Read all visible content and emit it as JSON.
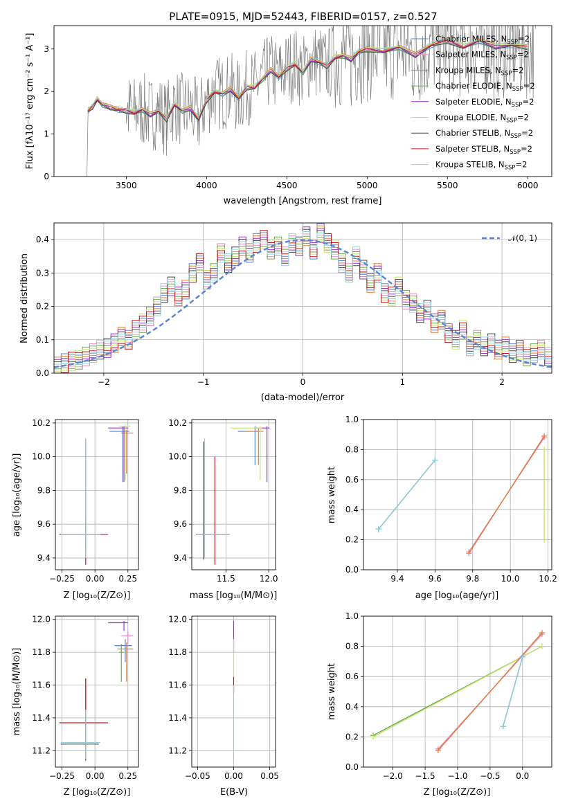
{
  "colors": {
    "chabrier_miles": "#5b84d6",
    "salpeter_miles": "#e58bc4",
    "kroupa_miles": "#e07b39",
    "chabrier_elodie": "#6aa84f",
    "salpeter_elodie": "#9b2fd0",
    "kroupa_elodie": "#c9e36a",
    "chabrier_stelib": "#444444",
    "salpeter_stelib": "#c0191f",
    "kroupa_stelib": "#8fd3e0",
    "data": "#7f7f7f",
    "normal": "#5b84d6"
  },
  "chart_data": [
    {
      "id": "spectrum",
      "type": "line",
      "title": "PLATE=0915, MJD=52443, FIBERID=0157, z=0.527",
      "xlabel": "wavelength [Angstrom, rest frame]",
      "ylabel": "Flux [fλ10⁻¹⁷ erg cm⁻² s⁻¹ A⁻¹]",
      "xlim": [
        3050,
        6150
      ],
      "ylim": [
        0,
        3.55
      ],
      "xticks": [
        3500,
        4000,
        4500,
        5000,
        5500,
        6000
      ],
      "yticks": [
        0,
        1,
        2,
        3
      ],
      "grid": false,
      "legend_position": "top-right",
      "series": [
        {
          "name": "Chabrier MILES, N",
          "sub": "SSP",
          "suffix": "=2"
        },
        {
          "name": "Salpeter MILES, N",
          "sub": "SSP",
          "suffix": "=2"
        },
        {
          "name": "Kroupa MILES, N",
          "sub": "SSP",
          "suffix": "=2"
        },
        {
          "name": "Chabrier ELODIE, N",
          "sub": "SSP",
          "suffix": "=2"
        },
        {
          "name": "Salpeter ELODIE, N",
          "sub": "SSP",
          "suffix": "=2"
        },
        {
          "name": "Kroupa ELODIE, N",
          "sub": "SSP",
          "suffix": "=2"
        },
        {
          "name": "Chabrier STELIB, N",
          "sub": "SSP",
          "suffix": "=2"
        },
        {
          "name": "Salpeter STELIB, N",
          "sub": "SSP",
          "suffix": "=2"
        },
        {
          "name": "Kroupa STELIB, N",
          "sub": "SSP",
          "suffix": "=2"
        }
      ],
      "model_trend": {
        "x": [
          3260,
          3290,
          3320,
          3350,
          3400,
          3450,
          3500,
          3550,
          3600,
          3650,
          3700,
          3750,
          3800,
          3850,
          3900,
          3950,
          4000,
          4050,
          4100,
          4150,
          4200,
          4250,
          4300,
          4350,
          4400,
          4450,
          4500,
          4550,
          4600,
          4650,
          4700,
          4750,
          4800,
          4850,
          4900,
          4950,
          5000,
          5100,
          5200,
          5300,
          5400,
          5500,
          5600,
          5700,
          5800,
          5900,
          6000
        ],
        "y": [
          1.55,
          1.65,
          1.82,
          1.7,
          1.62,
          1.58,
          1.55,
          1.5,
          1.58,
          1.45,
          1.55,
          1.35,
          1.7,
          1.55,
          1.6,
          1.35,
          1.8,
          2.0,
          1.95,
          2.05,
          1.85,
          2.1,
          2.1,
          2.3,
          2.5,
          2.35,
          2.55,
          2.65,
          2.45,
          2.75,
          2.7,
          2.6,
          2.8,
          2.85,
          2.75,
          2.95,
          3.0,
          2.95,
          3.05,
          2.85,
          3.1,
          3.2,
          3.05,
          3.2,
          3.05,
          3.1,
          3.05
        ]
      }
    },
    {
      "id": "residuals",
      "type": "line",
      "xlabel": "(data-model)/error",
      "ylabel": "Normed distribution",
      "xlim": [
        -2.5,
        2.5
      ],
      "ylim": [
        0,
        0.45
      ],
      "xticks": [
        -2,
        -1,
        0,
        1,
        2
      ],
      "yticks": [
        0.0,
        0.1,
        0.2,
        0.3,
        0.4
      ],
      "grid": true,
      "legend_position": "top-right",
      "normal_label": "𝒩(0, 1)",
      "normal": {
        "mu": 0,
        "sigma": 1
      },
      "hist_reference": [
        0.02,
        0.03,
        0.035,
        0.04,
        0.05,
        0.06,
        0.07,
        0.075,
        0.09,
        0.11,
        0.1,
        0.13,
        0.15,
        0.17,
        0.2,
        0.24,
        0.26,
        0.23,
        0.25,
        0.3,
        0.33,
        0.28,
        0.3,
        0.36,
        0.33,
        0.35,
        0.38,
        0.36,
        0.39,
        0.4,
        0.37,
        0.38,
        0.35,
        0.39,
        0.38,
        0.41,
        0.37,
        0.42,
        0.39,
        0.37,
        0.33,
        0.3,
        0.35,
        0.31,
        0.27,
        0.3,
        0.24,
        0.23,
        0.26,
        0.22,
        0.21,
        0.18,
        0.19,
        0.15,
        0.16,
        0.12,
        0.1,
        0.13,
        0.08,
        0.1,
        0.08,
        0.09,
        0.07,
        0.08,
        0.06,
        0.07,
        0.05,
        0.06,
        0.07,
        0.05
      ]
    },
    {
      "id": "age_vs_Z",
      "type": "scatter",
      "xlabel": "Z [log₁₀(Z/Z⊙)]",
      "ylabel": "age  [log₁₀(age/yr)]",
      "xlim": [
        -0.3,
        0.33
      ],
      "ylim": [
        9.33,
        10.22
      ],
      "xticks": [
        -0.25,
        0.0,
        0.25
      ],
      "xticklabels": [
        "−0.25",
        "0.00",
        "0.25"
      ],
      "yticks": [
        9.4,
        9.6,
        9.8,
        10.0,
        10.2
      ],
      "grid": true,
      "points": [
        {
          "series": "chabrier_miles",
          "x": 0.21,
          "y": 10.15,
          "xerr": [
            0.1,
            0.05
          ],
          "yerr": [
            0.3,
            0.03
          ]
        },
        {
          "series": "kroupa_miles",
          "x": 0.24,
          "y": 10.14,
          "xerr": [
            0.04,
            0.05
          ],
          "yerr": [
            0.24,
            0.02
          ]
        },
        {
          "series": "salpeter_elodie",
          "x": 0.22,
          "y": 10.17,
          "xerr": [
            0.12,
            0.03
          ],
          "yerr": [
            0.32,
            0.01
          ]
        },
        {
          "series": "kroupa_elodie",
          "x": 0.23,
          "y": 10.18,
          "xerr": [
            0.05,
            0.04
          ],
          "yerr": [
            0.32,
            0.01
          ]
        },
        {
          "series": "chabrier_stelib",
          "x": -0.07,
          "y": 9.54,
          "xerr": [
            0.19,
            0.1
          ],
          "yerr": [
            0.1,
            0.56
          ]
        },
        {
          "series": "salpeter_stelib",
          "x": -0.07,
          "y": 9.54,
          "xerr": [
            0.2,
            0.17
          ],
          "yerr": [
            0.18,
            0.1
          ]
        },
        {
          "series": "kroupa_stelib",
          "x": -0.07,
          "y": 9.54,
          "xerr": [
            0.19,
            0.11
          ],
          "yerr": [
            0.14,
            0.57
          ]
        }
      ]
    },
    {
      "id": "age_vs_mass",
      "type": "scatter",
      "xlabel": "mass [log₁₀(M/M⊙)]",
      "ylabel": "",
      "xlim": [
        11.1,
        12.08
      ],
      "ylim": [
        9.33,
        10.22
      ],
      "xticks": [
        11.5,
        12.0
      ],
      "xticklabels": [
        "11.5",
        "12.0"
      ],
      "yticks": [
        9.4,
        9.6,
        9.8,
        10.0,
        10.2
      ],
      "grid": true,
      "points": [
        {
          "series": "chabrier_miles",
          "x": 11.84,
          "y": 10.15,
          "xerr": [
            0.2,
            0.05
          ],
          "yerr": [
            0.2,
            0.03
          ]
        },
        {
          "series": "kroupa_miles",
          "x": 11.88,
          "y": 10.15,
          "xerr": [
            0.15,
            0.06
          ],
          "yerr": [
            0.2,
            0.02
          ]
        },
        {
          "series": "salpeter_elodie",
          "x": 11.98,
          "y": 10.17,
          "xerr": [
            0.15,
            0.03
          ],
          "yerr": [
            0.32,
            0.01
          ]
        },
        {
          "series": "kroupa_elodie",
          "x": 11.9,
          "y": 10.17,
          "xerr": [
            0.35,
            0.02
          ],
          "yerr": [
            0.31,
            0.01
          ]
        },
        {
          "series": "chabrier_stelib",
          "x": 11.24,
          "y": 9.54,
          "xerr": [
            0.09,
            0.3
          ],
          "yerr": [
            0.15,
            0.55
          ]
        },
        {
          "series": "salpeter_stelib",
          "x": 11.37,
          "y": 9.54,
          "xerr": [
            0.2,
            0.17
          ],
          "yerr": [
            0.18,
            0.46
          ]
        },
        {
          "series": "kroupa_stelib",
          "x": 11.25,
          "y": 9.54,
          "xerr": [
            0.09,
            0.3
          ],
          "yerr": [
            0.14,
            0.57
          ]
        }
      ]
    },
    {
      "id": "weight_vs_age",
      "type": "line",
      "xlabel": "age  [log₁₀(age/yr)]",
      "ylabel": "mass weight",
      "xlim": [
        9.22,
        10.22
      ],
      "ylim": [
        0,
        1.0
      ],
      "xticks": [
        9.4,
        9.6,
        9.8,
        10.0,
        10.2
      ],
      "yticks": [
        0.0,
        0.2,
        0.4,
        0.6,
        0.8,
        1.0
      ],
      "grid": true,
      "series": [
        {
          "series": "chabrier_stelib",
          "x": [
            9.3,
            9.6
          ],
          "y": [
            0.27,
            0.73
          ]
        },
        {
          "series": "kroupa_stelib",
          "x": [
            9.3,
            9.6
          ],
          "y": [
            0.27,
            0.73
          ]
        },
        {
          "series": "salpeter_miles",
          "x": [
            9.78,
            10.18
          ],
          "y": [
            0.12,
            0.88
          ]
        },
        {
          "series": "kroupa_miles",
          "x": [
            9.78,
            10.18
          ],
          "y": [
            0.11,
            0.89
          ]
        },
        {
          "series": "kroupa_elodie",
          "x": [
            10.18,
            10.18
          ],
          "y": [
            0.2,
            0.8
          ]
        }
      ]
    },
    {
      "id": "mass_vs_Z",
      "type": "scatter",
      "xlabel": "Z [log₁₀(Z/Z⊙)]",
      "ylabel": "mass [log₁₀(M/M⊙)]",
      "xlim": [
        -0.3,
        0.33
      ],
      "ylim": [
        11.1,
        12.02
      ],
      "xticks": [
        -0.25,
        0.0,
        0.25
      ],
      "xticklabels": [
        "−0.25",
        "0.00",
        "0.25"
      ],
      "yticks": [
        11.2,
        11.4,
        11.6,
        11.8,
        12.0
      ],
      "grid": true,
      "points": [
        {
          "series": "chabrier_miles",
          "x": 0.23,
          "y": 11.84,
          "xerr": [
            0.08,
            0.05
          ],
          "yerr": [
            0.1,
            0.04
          ]
        },
        {
          "series": "kroupa_miles",
          "x": 0.24,
          "y": 11.82,
          "xerr": [
            0.07,
            0.05
          ],
          "yerr": [
            0.2,
            0.04
          ]
        },
        {
          "series": "salpeter_miles",
          "x": 0.25,
          "y": 11.9,
          "xerr": [
            0.05,
            0.04
          ],
          "yerr": [
            0.05,
            0.03
          ]
        },
        {
          "series": "chabrier_elodie",
          "x": 0.2,
          "y": 11.8,
          "xerr": [
            0.02,
            0.02
          ],
          "yerr": [
            0.18,
            0.05
          ]
        },
        {
          "series": "salpeter_elodie",
          "x": 0.22,
          "y": 11.98,
          "xerr": [
            0.12,
            0.03
          ],
          "yerr": [
            0.05,
            0.01
          ]
        },
        {
          "series": "chabrier_stelib",
          "x": -0.07,
          "y": 11.24,
          "xerr": [
            0.19,
            0.1
          ],
          "yerr": [
            0.1,
            0.4
          ]
        },
        {
          "series": "salpeter_stelib",
          "x": -0.07,
          "y": 11.37,
          "xerr": [
            0.2,
            0.17
          ],
          "yerr": [
            0.2,
            0.27
          ]
        },
        {
          "series": "kroupa_stelib",
          "x": -0.07,
          "y": 11.25,
          "xerr": [
            0.19,
            0.11
          ],
          "yerr": [
            0.1,
            0.2
          ]
        }
      ]
    },
    {
      "id": "ebv",
      "type": "scatter",
      "xlabel": "E(B-V)",
      "ylabel": "",
      "xlim": [
        -0.058,
        0.058
      ],
      "ylim": [
        11.1,
        12.02
      ],
      "xticks": [
        -0.05,
        0.0,
        0.05
      ],
      "xticklabels": [
        "−0.05",
        "0.00",
        "0.05"
      ],
      "yticks": [
        11.2,
        11.4,
        11.6,
        11.8,
        12.0
      ],
      "grid": true,
      "points": [
        {
          "series": "salpeter_elodie",
          "x": 0.0,
          "y": 11.9,
          "xerr": [
            0,
            0
          ],
          "yerr": [
            0.1,
            0.09
          ]
        },
        {
          "series": "kroupa_elodie",
          "x": 0.0,
          "y": 11.8,
          "xerr": [
            0,
            0
          ],
          "yerr": [
            0.15,
            0.08
          ]
        },
        {
          "series": "salpeter_stelib",
          "x": 0.0,
          "y": 11.6,
          "xerr": [
            0,
            0
          ],
          "yerr": [
            0.05,
            0.05
          ]
        },
        {
          "series": "kroupa_stelib",
          "x": 0.0,
          "y": 11.4,
          "xerr": [
            0,
            0
          ],
          "yerr": [
            0.25,
            0.2
          ]
        }
      ]
    },
    {
      "id": "weight_vs_Z",
      "type": "line",
      "xlabel": "Z [log₁₀(Z/Z⊙)]",
      "ylabel": "mass weight",
      "xlim": [
        -2.45,
        0.45
      ],
      "ylim": [
        0,
        1.0
      ],
      "xticks": [
        -2.0,
        -1.5,
        -1.0,
        -0.5,
        0.0
      ],
      "xticklabels": [
        "−2.0",
        "−1.5",
        "−1.0",
        "−0.5",
        "0.0"
      ],
      "yticks": [
        0.0,
        0.2,
        0.4,
        0.6,
        0.8,
        1.0
      ],
      "grid": true,
      "series": [
        {
          "series": "chabrier_elodie",
          "x": [
            -2.3,
            0.3
          ],
          "y": [
            0.21,
            0.8
          ]
        },
        {
          "series": "kroupa_elodie",
          "x": [
            -2.3,
            0.3
          ],
          "y": [
            0.2,
            0.8
          ]
        },
        {
          "series": "salpeter_miles",
          "x": [
            -1.3,
            0.3
          ],
          "y": [
            0.12,
            0.88
          ]
        },
        {
          "series": "kroupa_miles",
          "x": [
            -1.3,
            0.3
          ],
          "y": [
            0.11,
            0.89
          ]
        },
        {
          "series": "chabrier_stelib",
          "x": [
            -0.3,
            0.0
          ],
          "y": [
            0.27,
            0.73
          ]
        },
        {
          "series": "kroupa_stelib",
          "x": [
            -0.3,
            0.0
          ],
          "y": [
            0.27,
            0.73
          ]
        }
      ]
    }
  ]
}
